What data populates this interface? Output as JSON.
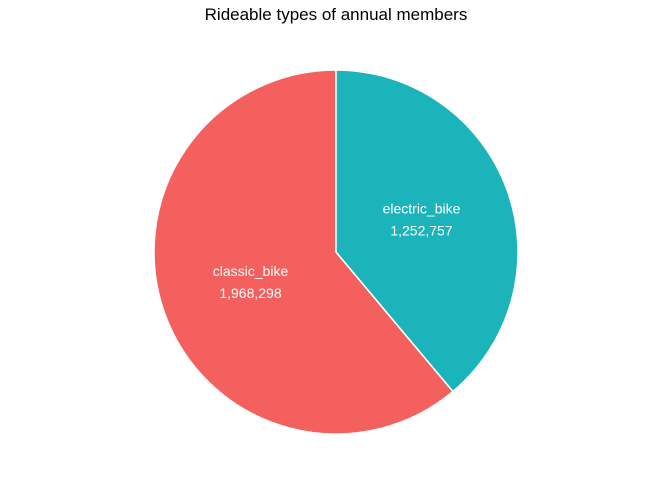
{
  "chart_data": {
    "type": "pie",
    "title": "Rideable types of annual members",
    "series": [
      {
        "name": "",
        "values": [
          1968298,
          1252757
        ]
      }
    ],
    "categories": [
      "classic_bike",
      "electric_bike"
    ],
    "value_labels": [
      "1,968,298",
      "1,252,757"
    ],
    "colors": [
      "#F3605D",
      "#1BB4BA"
    ],
    "slice_border_color": "#FFFFFF",
    "start_angle": "12 o'clock",
    "direction": "counterclockwise",
    "legend": "none"
  }
}
